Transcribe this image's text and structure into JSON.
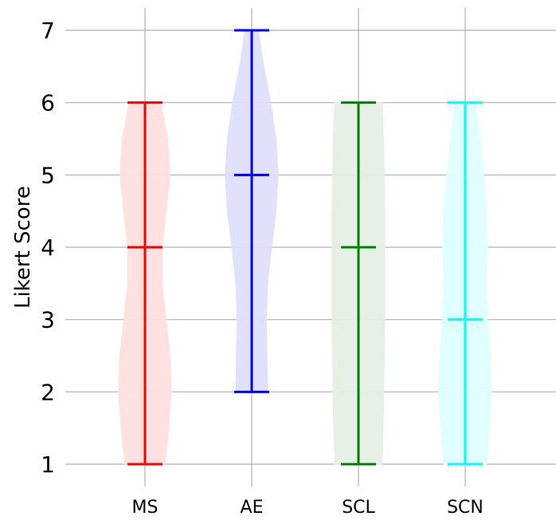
{
  "chart_data": {
    "type": "violin",
    "title": "",
    "xlabel": "",
    "ylabel": "Likert Score",
    "ylim": [
      1,
      7
    ],
    "yticks": [
      1,
      2,
      3,
      4,
      5,
      6,
      7
    ],
    "grid": true,
    "categories": [
      "MS",
      "AE",
      "SCL",
      "SCN"
    ],
    "series": [
      {
        "category": "MS",
        "color": "#ff0000",
        "fill": "#ffe0e0",
        "min": 1,
        "median": 4,
        "max": 6,
        "density": [
          [
            1,
            0.75
          ],
          [
            1.5,
            0.9
          ],
          [
            2,
            1.0
          ],
          [
            2.5,
            0.95
          ],
          [
            3,
            0.8
          ],
          [
            3.5,
            0.65
          ],
          [
            4,
            0.65
          ],
          [
            4.5,
            0.8
          ],
          [
            5,
            0.95
          ],
          [
            5.5,
            0.85
          ],
          [
            6,
            0.6
          ]
        ]
      },
      {
        "category": "AE",
        "color": "#0000ff",
        "fill": "#e0e0fb",
        "min": 2,
        "median": 5,
        "max": 7,
        "density": [
          [
            2,
            0.6
          ],
          [
            2.5,
            0.58
          ],
          [
            3,
            0.55
          ],
          [
            3.5,
            0.6
          ],
          [
            4,
            0.75
          ],
          [
            4.5,
            0.92
          ],
          [
            5,
            1.0
          ],
          [
            5.5,
            0.92
          ],
          [
            6,
            0.72
          ],
          [
            6.5,
            0.45
          ],
          [
            7,
            0.25
          ]
        ]
      },
      {
        "category": "SCL",
        "color": "#008000",
        "fill": "#e6f0e6",
        "min": 1,
        "median": 4,
        "max": 6,
        "density": [
          [
            1,
            0.9
          ],
          [
            1.5,
            0.93
          ],
          [
            2,
            0.96
          ],
          [
            2.5,
            0.98
          ],
          [
            3,
            1.0
          ],
          [
            3.5,
            1.0
          ],
          [
            4,
            1.0
          ],
          [
            4.5,
            1.0
          ],
          [
            5,
            0.98
          ],
          [
            5.5,
            0.95
          ],
          [
            6,
            0.9
          ]
        ]
      },
      {
        "category": "SCN",
        "color": "#00ffff",
        "fill": "#e0ffff",
        "min": 1,
        "median": 3,
        "max": 6,
        "density": [
          [
            1,
            0.8
          ],
          [
            1.5,
            0.92
          ],
          [
            2,
            1.0
          ],
          [
            2.5,
            0.95
          ],
          [
            3,
            0.85
          ],
          [
            3.5,
            0.8
          ],
          [
            4,
            0.85
          ],
          [
            4.5,
            0.8
          ],
          [
            5,
            0.7
          ],
          [
            5.5,
            0.55
          ],
          [
            6,
            0.4
          ]
        ]
      }
    ]
  }
}
